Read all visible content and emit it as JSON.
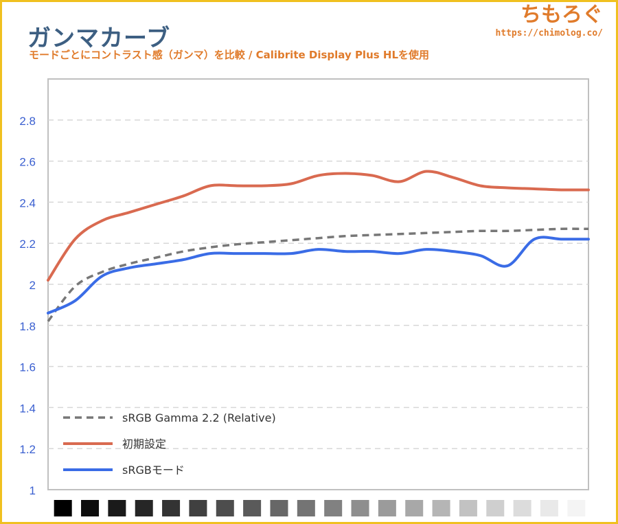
{
  "header": {
    "title": "ガンマカーブ",
    "subtitle": "モードごとにコントラスト感（ガンマ）を比較 / Calibrite Display Plus HLを使用",
    "logo_text": "ちもろぐ",
    "logo_url": "https://chimolog.co/"
  },
  "colors": {
    "frame": "#f0c020",
    "title": "#3d5f82",
    "accent": "#e07b2b",
    "tick_label": "#3a5fd0",
    "grid": "#d7d7d7",
    "plot_border": "#c0c0c0"
  },
  "chart_data": {
    "type": "line",
    "title": "",
    "xlabel": "",
    "ylabel": "",
    "ylim": [
      1,
      3
    ],
    "yticks": [
      1,
      1.2,
      1.4,
      1.6,
      1.8,
      2,
      2.2,
      2.4,
      2.6,
      2.8
    ],
    "ytick_labels": [
      "1",
      "1.2",
      "1.4",
      "1.6",
      "1.8",
      "2",
      "2.2",
      "2.4",
      "2.6",
      "2.8"
    ],
    "grid": true,
    "legend_position": "bottom-left",
    "x": [
      0,
      5,
      10,
      15,
      20,
      25,
      30,
      35,
      40,
      45,
      50,
      55,
      60,
      65,
      70,
      75,
      80,
      85,
      90,
      95,
      100
    ],
    "x_gray_swatches": [
      "#000000",
      "#0d0d0d",
      "#1a1a1a",
      "#262626",
      "#333333",
      "#404040",
      "#4d4d4d",
      "#5a5a5a",
      "#676767",
      "#747474",
      "#818181",
      "#8e8e8e",
      "#9b9b9b",
      "#a8a8a8",
      "#b5b5b5",
      "#c2c2c2",
      "#cfcfcf",
      "#dcdcdc",
      "#e9e9e9",
      "#f4f4f4"
    ],
    "series": [
      {
        "name": "sRGB Gamma 2.2 (Relative)",
        "color": "#777777",
        "style": "dashed",
        "values": [
          1.82,
          1.99,
          2.06,
          2.1,
          2.13,
          2.16,
          2.18,
          2.195,
          2.205,
          2.215,
          2.225,
          2.235,
          2.24,
          2.245,
          2.25,
          2.255,
          2.26,
          2.26,
          2.265,
          2.27,
          2.27
        ]
      },
      {
        "name": "初期設定",
        "color": "#d96a50",
        "style": "solid",
        "values": [
          2.02,
          2.22,
          2.31,
          2.35,
          2.39,
          2.43,
          2.48,
          2.48,
          2.48,
          2.49,
          2.53,
          2.54,
          2.53,
          2.5,
          2.55,
          2.52,
          2.48,
          2.47,
          2.465,
          2.46,
          2.46
        ]
      },
      {
        "name": "sRGBモード",
        "color": "#3a6ce6",
        "style": "solid",
        "values": [
          1.86,
          1.92,
          2.04,
          2.08,
          2.1,
          2.12,
          2.15,
          2.15,
          2.15,
          2.15,
          2.17,
          2.16,
          2.16,
          2.15,
          2.17,
          2.16,
          2.14,
          2.09,
          2.22,
          2.22,
          2.22
        ]
      }
    ]
  }
}
